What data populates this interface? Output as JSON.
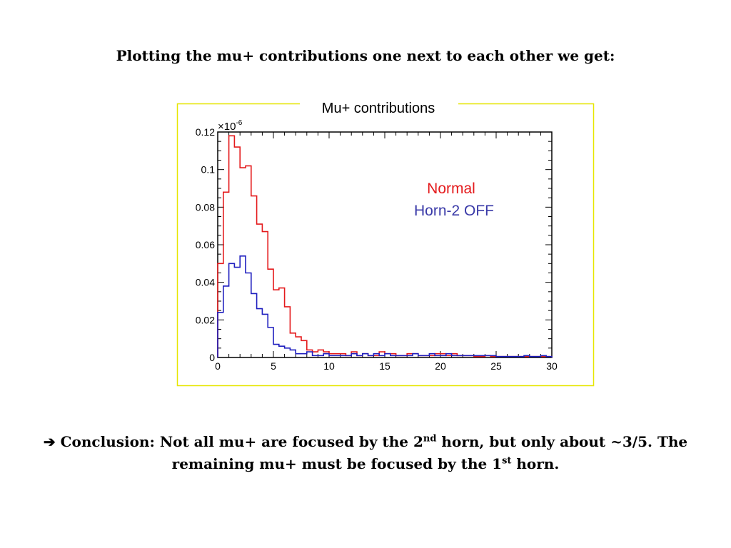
{
  "slide": {
    "heading": "Plotting the mu+ contributions one next to each other we get:",
    "conclusion": {
      "arrow": "➔",
      "part1": " Conclusion: Not all mu+ are focused by the 2",
      "sup1": "nd",
      "part2": " horn, but only about ~3/5.  The remaining mu+ must be focused by the 1",
      "sup2": "st",
      "part3": " horn."
    }
  },
  "chart_data": {
    "type": "line",
    "style": "step-histogram",
    "title": "Mu+ contributions",
    "exponent_label": "×10",
    "exponent_power": "-6",
    "xlabel": "",
    "ylabel": "",
    "xlim": [
      0,
      30
    ],
    "ylim": [
      0,
      0.12
    ],
    "x_ticks": [
      "0",
      "5",
      "10",
      "15",
      "20",
      "25",
      "30"
    ],
    "y_ticks": [
      "0",
      "0.02",
      "0.04",
      "0.06",
      "0.08",
      "0.1",
      "0.12"
    ],
    "bin_width": 0.5,
    "frame_color": "#e6e600",
    "series": [
      {
        "name": "Normal",
        "color": "#e41a1c",
        "values": [
          0.05,
          0.088,
          0.118,
          0.112,
          0.101,
          0.102,
          0.086,
          0.071,
          0.067,
          0.047,
          0.036,
          0.037,
          0.027,
          0.013,
          0.011,
          0.009,
          0.004,
          0.003,
          0.004,
          0.003,
          0.002,
          0.002,
          0.002,
          0.001,
          0.003,
          0.001,
          0.002,
          0.001,
          0.001,
          0.003,
          0.002,
          0.002,
          0.001,
          0.001,
          0.002,
          0.002,
          0.001,
          0.001,
          0.001,
          0.002,
          0.002,
          0.001,
          0.002,
          0.001,
          0.001,
          0.001,
          0.0005,
          0.0005,
          0.001,
          0.0005,
          0.0005,
          0.0005,
          0.0005,
          0.0005,
          0.0005,
          0.0005,
          0.0005,
          0.0005,
          0.0005,
          0.0005
        ]
      },
      {
        "name": "Horn-2 OFF",
        "color": "#1f1fbf",
        "values": [
          0.024,
          0.038,
          0.05,
          0.048,
          0.054,
          0.045,
          0.034,
          0.026,
          0.023,
          0.016,
          0.007,
          0.006,
          0.005,
          0.004,
          0.002,
          0.002,
          0.003,
          0.001,
          0.001,
          0.002,
          0.001,
          0.001,
          0.001,
          0.001,
          0.002,
          0.001,
          0.002,
          0.001,
          0.002,
          0.001,
          0.002,
          0.001,
          0.001,
          0.001,
          0.001,
          0.002,
          0.001,
          0.001,
          0.002,
          0.001,
          0.001,
          0.002,
          0.001,
          0.001,
          0.001,
          0.001,
          0.001,
          0.001,
          0.001,
          0.001,
          0.0005,
          0.0005,
          0.0005,
          0.0005,
          0.0005,
          0.001,
          0.0005,
          0.0005,
          0.001,
          0.0005
        ]
      }
    ]
  }
}
